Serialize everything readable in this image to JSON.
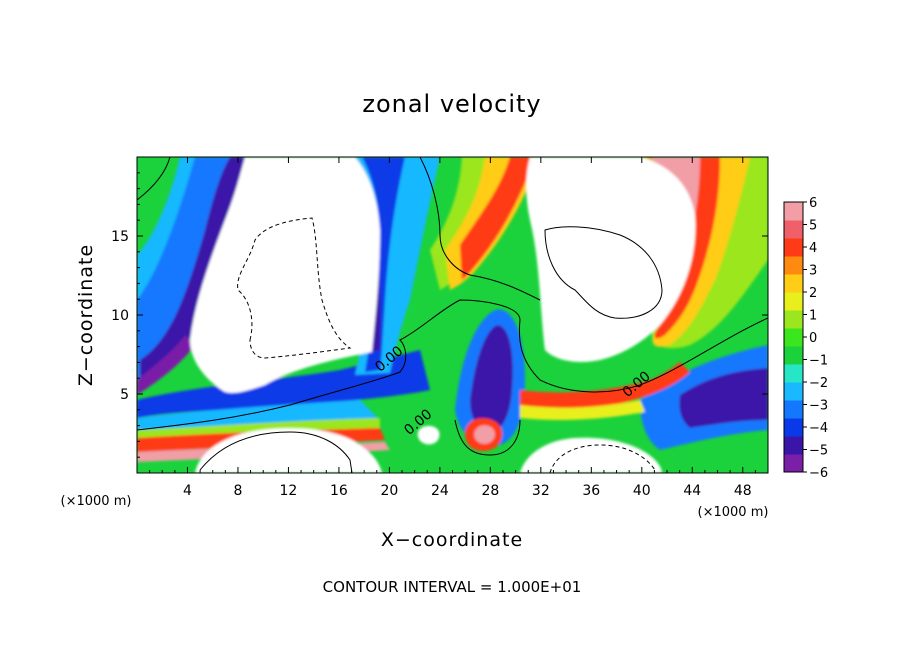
{
  "chart_data": {
    "type": "heatmap",
    "title": "zonal velocity",
    "xlabel": "X−coordinate",
    "ylabel": "Z−coordinate",
    "x_unit_note": "(×1000 m)",
    "y_unit_note": "(×1000 m)",
    "xlim": [
      0,
      50
    ],
    "ylim": [
      0,
      20
    ],
    "x_ticks": [
      4,
      8,
      12,
      16,
      20,
      24,
      28,
      32,
      36,
      40,
      44,
      48
    ],
    "x_tick_labels": [
      "4",
      "8",
      "12",
      "16",
      "20",
      "24",
      "28",
      "32",
      "36",
      "40",
      "44",
      "48"
    ],
    "y_ticks": [
      5,
      10,
      15
    ],
    "y_tick_labels": [
      "5",
      "10",
      "15"
    ],
    "colorbar": {
      "min": -6,
      "max": 6,
      "ticks": [
        6,
        5,
        4,
        3,
        2,
        1,
        0,
        -1,
        -2,
        -3,
        -4,
        -5,
        -6
      ],
      "tick_labels": [
        "6",
        "5",
        "4",
        "3",
        "2",
        "1",
        "0",
        "−1",
        "−2",
        "−3",
        "−4",
        "−5",
        "−6"
      ],
      "colors": [
        "#7a1fa8",
        "#3a16a8",
        "#0a3ae8",
        "#1478ff",
        "#19b8ff",
        "#27e6c8",
        "#1bd23c",
        "#3ce61e",
        "#9be61e",
        "#e8ef1c",
        "#ffcc16",
        "#ff8a10",
        "#ff3a16",
        "#f0606a",
        "#f29ea6"
      ]
    },
    "contour_labels": [
      {
        "text": "0.00",
        "x": 20.2,
        "z": 7.0
      },
      {
        "text": "0.00",
        "x": 39.8,
        "z": 5.4
      },
      {
        "text": "0.00",
        "x": 22.5,
        "z": 3.0
      }
    ],
    "footer": "CONTOUR INTERVAL = 1.000E+01"
  }
}
